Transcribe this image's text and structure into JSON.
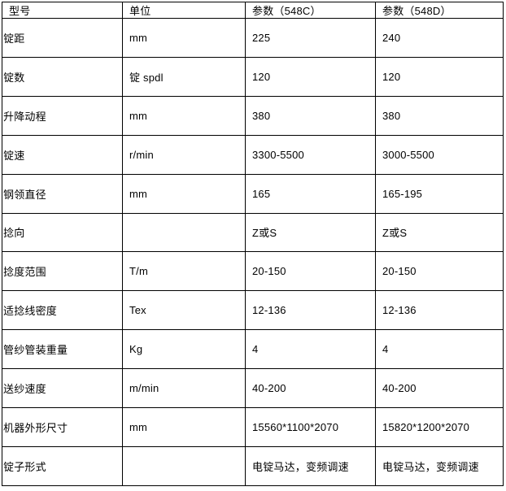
{
  "table": {
    "headers": [
      "型号",
      "单位",
      "参数（548C）",
      "参数（548D）"
    ],
    "rows": [
      {
        "label": "锭距",
        "unit": "mm",
        "param_548c": "225",
        "param_548d": "240"
      },
      {
        "label": "锭数",
        "unit": "锭 spdl",
        "param_548c": "120",
        "param_548d": "120"
      },
      {
        "label": "升降动程",
        "unit": "mm",
        "param_548c": "380",
        "param_548d": "380"
      },
      {
        "label": "锭速",
        "unit": "r/min",
        "param_548c": "3300-5500",
        "param_548d": "3000-5500"
      },
      {
        "label": "钢领直径",
        "unit": "mm",
        "param_548c": "165",
        "param_548d": "165-195"
      },
      {
        "label": "捻向",
        "unit": "",
        "param_548c": "Z或S",
        "param_548d": "Z或S"
      },
      {
        "label": "捻度范围",
        "unit": "T/m",
        "param_548c": "20-150",
        "param_548d": "20-150"
      },
      {
        "label": "适捻线密度",
        "unit": "Tex",
        "param_548c": "12-136",
        "param_548d": "12-136"
      },
      {
        "label": "管纱管装重量",
        "unit": "Kg",
        "param_548c": "4",
        "param_548d": "4"
      },
      {
        "label": "送纱速度",
        "unit": "m/min",
        "param_548c": "40-200",
        "param_548d": "40-200"
      },
      {
        "label": "机器外形尺寸",
        "unit": "mm",
        "param_548c": "15560*1100*2070",
        "param_548d": "15820*1200*2070"
      },
      {
        "label": "锭子形式",
        "unit": "",
        "param_548c": "电锭马达，变频调速",
        "param_548d": "电锭马达，变频调速"
      }
    ],
    "colors": {
      "border": "#000000",
      "text": "#000000",
      "background": "#ffffff"
    }
  }
}
